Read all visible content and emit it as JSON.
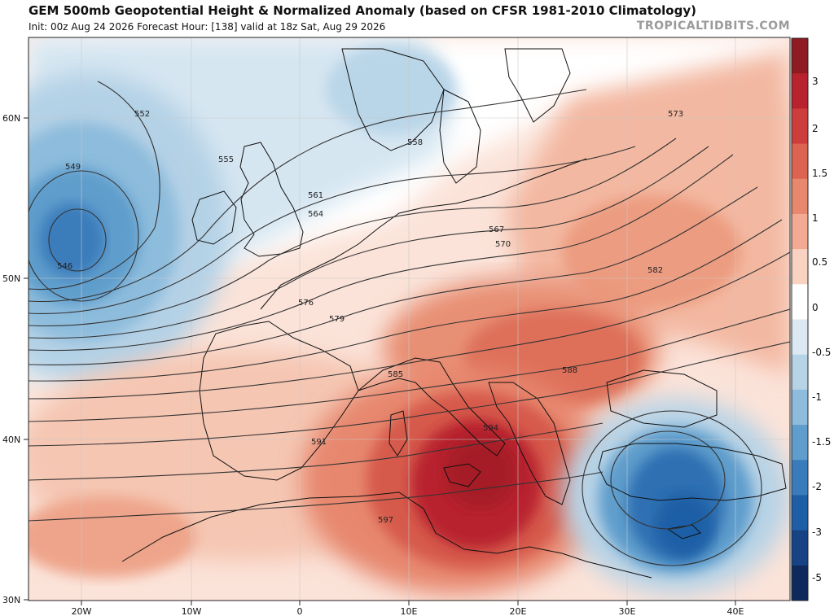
{
  "header": {
    "title": "GEM 500mb Geopotential Height & Normalized Anomaly (based on CFSR 1981-2010 Climatology)",
    "subtitle": "Init: 00z Aug 24 2026   Forecast Hour: [138]   valid at 18z Sat, Aug 29 2026",
    "brand": "TROPICALTIDBITS.COM"
  },
  "map": {
    "lat_labels": [
      "60N",
      "50N",
      "40N",
      "30N"
    ],
    "lon_labels": [
      "20W",
      "10W",
      "0",
      "10E",
      "20E",
      "30E",
      "40E"
    ],
    "contour_labels": [
      "546",
      "549",
      "552",
      "555",
      "558",
      "561",
      "564",
      "567",
      "570",
      "573",
      "576",
      "579",
      "582",
      "585",
      "588",
      "591",
      "594",
      "597"
    ],
    "colors": {
      "strong_positive": "#b8232d",
      "positive": "#e58a72",
      "weak_positive": "#f7d6c9",
      "neutral": "#ffffff",
      "weak_negative": "#d3e4ef",
      "negative": "#7aaed2",
      "strong_negative": "#1e5ea6"
    }
  },
  "colorbar": {
    "labels": [
      "3",
      "2",
      "1.5",
      "1",
      "0.5",
      "0",
      "-0.5",
      "-1",
      "-1.5",
      "-2",
      "-3",
      "-5"
    ],
    "colors": [
      "#8e1a22",
      "#b8232d",
      "#cc3d3c",
      "#dc6252",
      "#e7876e",
      "#f2aa92",
      "#f9d2c2",
      "#ffffff",
      "#dce9f2",
      "#b7d3e6",
      "#8dbcdc",
      "#5f9dcc",
      "#3a7cbb",
      "#1e5ea6",
      "#174385",
      "#0e2a5c"
    ]
  }
}
